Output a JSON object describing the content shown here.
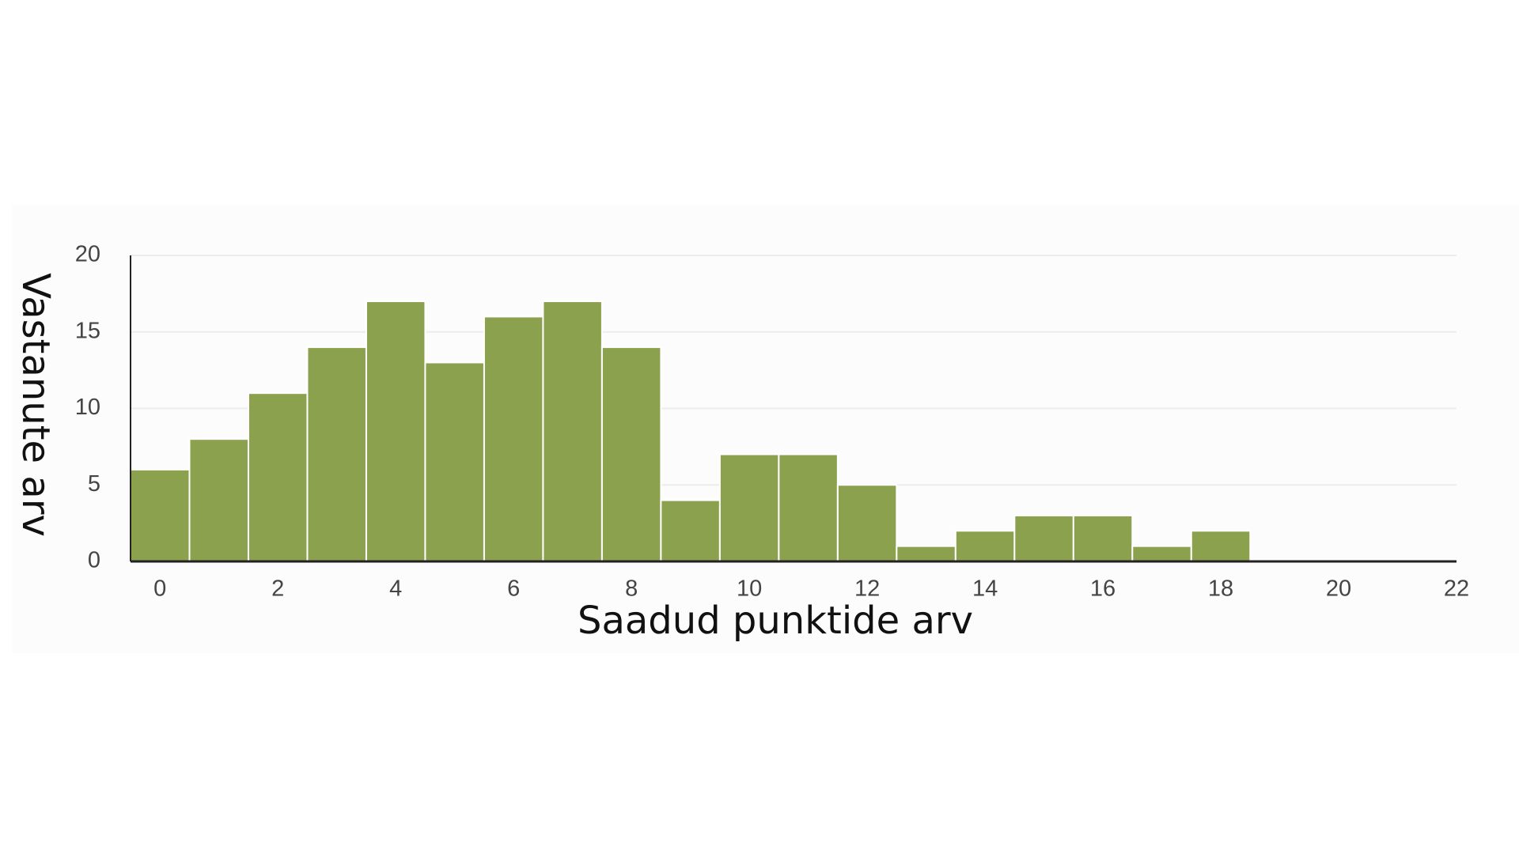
{
  "chart_data": {
    "type": "histogram",
    "x_label": "Saadud punktide arv",
    "y_label": "Vastanute arv",
    "bins": [
      -0.5,
      0.5,
      1.5,
      2.5,
      3.5,
      4.5,
      5.5,
      6.5,
      7.5,
      8.5,
      9.5,
      10.5,
      11.5,
      12.5,
      13.5,
      14.5,
      15.5,
      16.5,
      17.5,
      18.5
    ],
    "values": [
      6,
      8,
      11,
      14,
      17,
      13,
      16,
      17,
      14,
      4,
      7,
      7,
      5,
      1,
      2,
      3,
      3,
      1,
      2
    ],
    "color": "#8ba14d",
    "xlim": [
      -0.5,
      22
    ],
    "xticks": [
      0,
      2,
      4,
      6,
      8,
      10,
      12,
      14,
      16,
      18,
      20,
      22
    ],
    "ylim": [
      0,
      20
    ],
    "yticks": [
      0,
      5,
      10,
      15,
      20
    ],
    "grid": true
  }
}
